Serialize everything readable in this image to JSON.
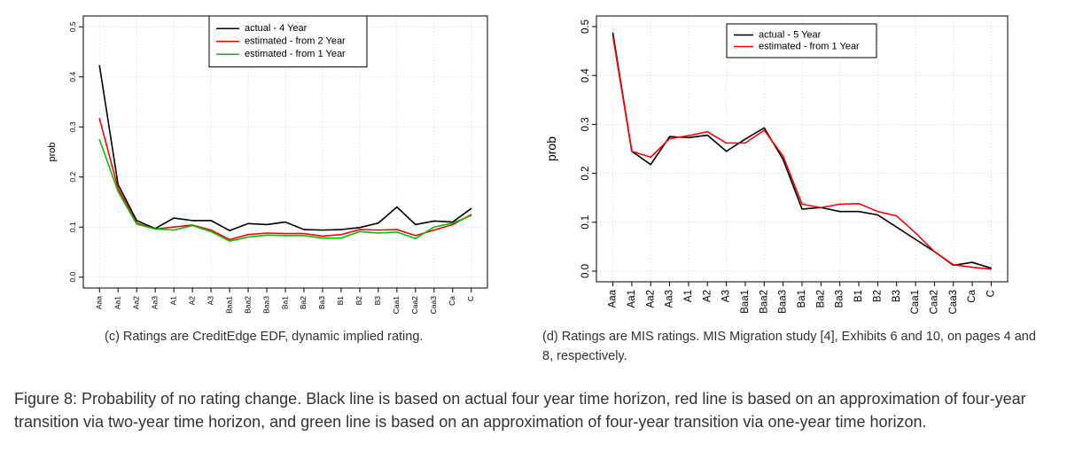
{
  "chart_data": [
    {
      "type": "line",
      "id": "c",
      "title": "",
      "xlabel": "",
      "ylabel": "prob",
      "ylim": [
        0.0,
        0.5
      ],
      "yticks": [
        "0.0",
        "0.1",
        "0.2",
        "0.3",
        "0.4",
        "0.5"
      ],
      "grid": true,
      "legend_position": "top-center",
      "categories": [
        "Aaa",
        "Aa1",
        "Aa2",
        "Aa3",
        "A1",
        "A2",
        "A3",
        "Baa1",
        "Baa2",
        "Baa3",
        "Ba1",
        "Ba2",
        "Ba3",
        "B1",
        "B2",
        "B3",
        "Caa1",
        "Caa2",
        "Caa3",
        "Ca",
        "C"
      ],
      "series": [
        {
          "name": "actual - 4 Year",
          "color": "#000000",
          "values": [
            0.423,
            0.185,
            0.113,
            0.097,
            0.118,
            0.113,
            0.113,
            0.093,
            0.107,
            0.105,
            0.11,
            0.095,
            0.094,
            0.095,
            0.099,
            0.108,
            0.14,
            0.105,
            0.112,
            0.11,
            0.137
          ]
        },
        {
          "name": "estimated - from 2 Year",
          "color": "#ff0000",
          "values": [
            0.317,
            0.177,
            0.108,
            0.096,
            0.1,
            0.104,
            0.094,
            0.075,
            0.085,
            0.088,
            0.087,
            0.087,
            0.082,
            0.085,
            0.095,
            0.094,
            0.095,
            0.083,
            0.094,
            0.105,
            0.125
          ]
        },
        {
          "name": "estimated - from 1 Year",
          "color": "#00c000",
          "values": [
            0.275,
            0.171,
            0.106,
            0.096,
            0.094,
            0.103,
            0.091,
            0.072,
            0.08,
            0.084,
            0.083,
            0.083,
            0.078,
            0.078,
            0.091,
            0.088,
            0.09,
            0.077,
            0.1,
            0.108,
            0.123
          ]
        }
      ]
    },
    {
      "type": "line",
      "id": "d",
      "title": "",
      "xlabel": "",
      "ylabel": "prob",
      "ylim": [
        0.0,
        0.5
      ],
      "yticks": [
        "0.0",
        "0.1",
        "0.2",
        "0.3",
        "0.4",
        "0.5"
      ],
      "grid": true,
      "legend_position": "top-center",
      "categories": [
        "Aaa",
        "Aa1",
        "Aa2",
        "Aa3",
        "A1",
        "A2",
        "A3",
        "Baa1",
        "Baa2",
        "Baa3",
        "Ba1",
        "Ba2",
        "Ba3",
        "B1",
        "B2",
        "B3",
        "Caa1",
        "Caa2",
        "Caa3",
        "Ca",
        "C"
      ],
      "series": [
        {
          "name": "actual - 5 Year",
          "color": "#000000",
          "values": [
            0.487,
            0.245,
            0.218,
            0.275,
            0.273,
            0.278,
            0.245,
            0.27,
            0.293,
            0.228,
            0.127,
            0.13,
            0.122,
            0.122,
            0.115,
            0.09,
            0.065,
            0.04,
            0.012,
            0.018,
            0.006
          ]
        },
        {
          "name": "estimated - from 1 Year",
          "color": "#ff0000",
          "values": [
            0.48,
            0.245,
            0.233,
            0.271,
            0.277,
            0.285,
            0.262,
            0.262,
            0.288,
            0.235,
            0.137,
            0.13,
            0.137,
            0.138,
            0.122,
            0.113,
            0.078,
            0.04,
            0.013,
            0.008,
            0.004
          ]
        }
      ]
    }
  ],
  "captions": {
    "c": "(c) Ratings are CreditEdge EDF, dynamic implied rating.",
    "d": "(d) Ratings are MIS ratings.  MIS Migration study [4], Exhibits 6 and 10, on pages 4 and 8, respectively.",
    "figure": "Figure 8: Probability of no rating change. Black line is based on actual four year time horizon, red line is based on an approximation of four-year transition via two-year time horizon, and green line is based on an approximation of four-year transition via one-year time horizon."
  }
}
